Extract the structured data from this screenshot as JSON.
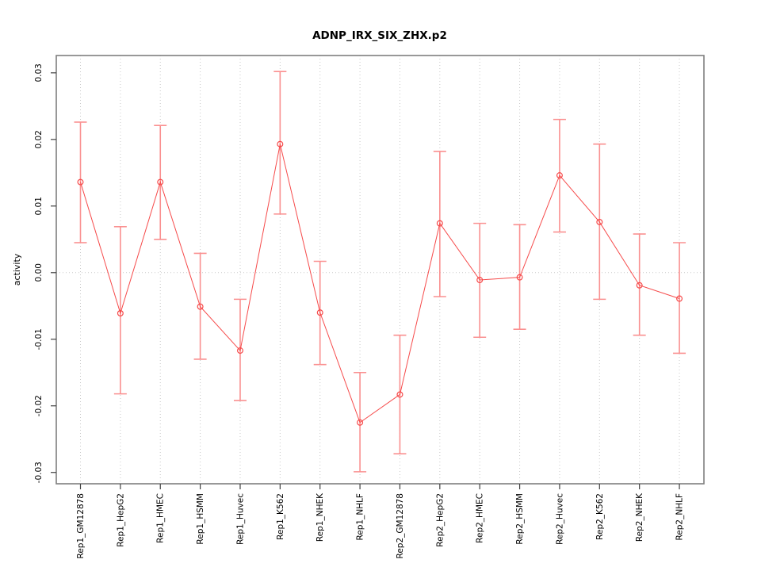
{
  "page": {
    "background": "#ffffff"
  },
  "chart_data": {
    "type": "line",
    "subtype": "point-estimates-with-error-bars",
    "title": "ADNP_IRX_SIX_ZHX.p2",
    "xlabel": "",
    "ylabel": "activity",
    "legend_position": "none",
    "grid": {
      "vertical_dotted_per_category": true,
      "horizontal_dotted_at_zero": true
    },
    "ylim": [
      -0.0317,
      0.0326
    ],
    "yticks": {
      "values": [
        0.03,
        0.02,
        0.01,
        0.0,
        -0.01,
        -0.02,
        -0.03
      ],
      "labels": [
        "0.03",
        "0.02",
        "0.01",
        "0.00",
        "-0.01",
        "-0.02",
        "-0.03"
      ]
    },
    "categories": [
      "Rep1_GM12878",
      "Rep1_HepG2",
      "Rep1_HMEC",
      "Rep1_HSMM",
      "Rep1_Huvec",
      "Rep1_K562",
      "Rep1_NHEK",
      "Rep1_NHLF",
      "Rep2_GM12878",
      "Rep2_HepG2",
      "Rep2_HMEC",
      "Rep2_HSMM",
      "Rep2_Huvec",
      "Rep2_K562",
      "Rep2_NHEK",
      "Rep2_NHLF"
    ],
    "series": [
      {
        "name": "activity",
        "values": [
          0.0136,
          -0.0061,
          0.0136,
          -0.0051,
          -0.0117,
          0.0193,
          -0.006,
          -0.0225,
          -0.0183,
          0.0074,
          -0.0011,
          -0.0007,
          0.0146,
          0.0076,
          -0.0019,
          -0.0039
        ],
        "ci_lower": [
          0.0045,
          -0.0182,
          0.005,
          -0.013,
          -0.0192,
          0.0088,
          -0.0138,
          -0.0299,
          -0.0272,
          -0.0036,
          -0.0097,
          -0.0085,
          0.0061,
          -0.004,
          -0.0094,
          -0.0121
        ],
        "ci_upper": [
          0.0226,
          0.0069,
          0.0221,
          0.0029,
          -0.004,
          0.0302,
          0.0017,
          -0.015,
          -0.0094,
          0.0182,
          0.0074,
          0.0072,
          0.023,
          0.0193,
          0.0058,
          0.0045
        ]
      }
    ],
    "colors": {
      "series_line": "#f64a4a",
      "error_bar": "#fa9090",
      "point_stroke": "#f64a4a",
      "grid": "#c9c9c9",
      "plot_border": "#7f7f7f",
      "tick": "#404040",
      "text": "#000000"
    }
  }
}
